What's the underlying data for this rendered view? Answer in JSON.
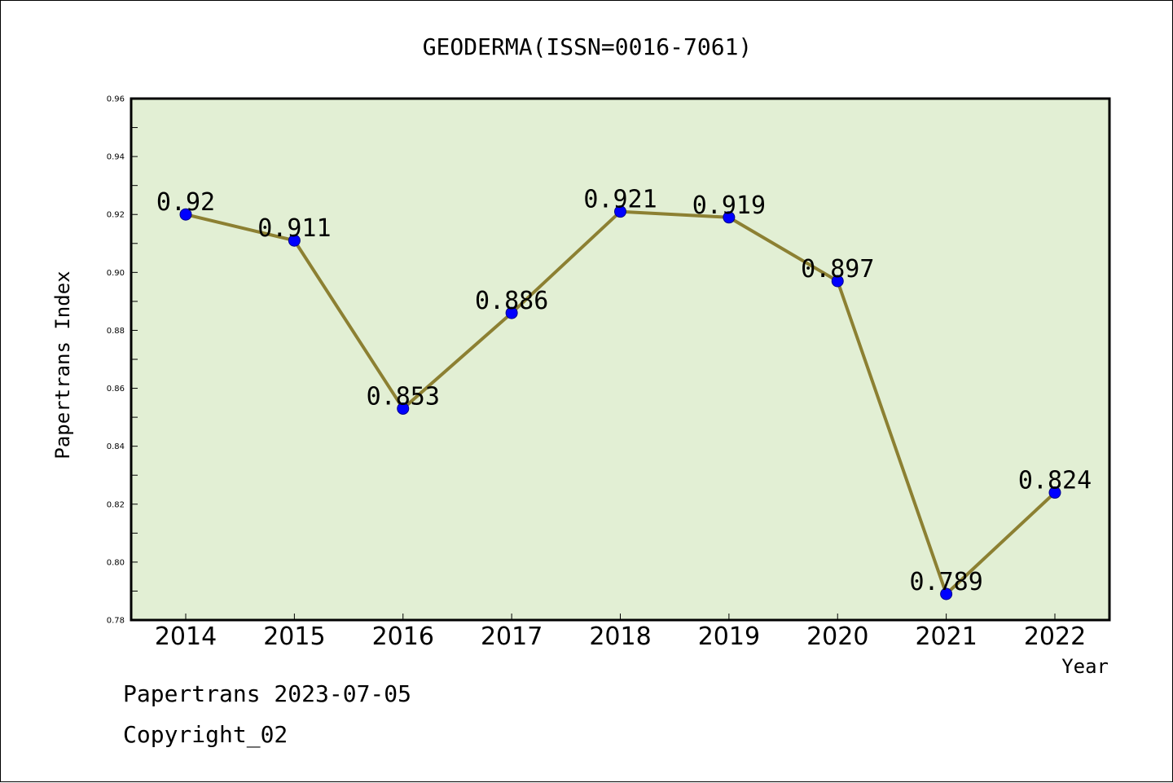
{
  "colors": {
    "plot_background": "#e2efd4",
    "line": "#8c8032",
    "marker_fill": "#0000ff",
    "marker_edge": "#00008b",
    "axis": "#000000"
  },
  "chart_data": {
    "type": "line",
    "title": "GEODERMA(ISSN=0016-7061)",
    "xlabel": "Year",
    "ylabel": "Papertrans Index",
    "categories": [
      "2014",
      "2015",
      "2016",
      "2017",
      "2018",
      "2019",
      "2020",
      "2021",
      "2022"
    ],
    "values": [
      0.92,
      0.911,
      0.853,
      0.886,
      0.921,
      0.919,
      0.897,
      0.789,
      0.824
    ],
    "data_labels": [
      "0.92",
      "0.911",
      "0.853",
      "0.886",
      "0.921",
      "0.919",
      "0.897",
      "0.789",
      "0.824"
    ],
    "ylim": [
      0.78,
      0.96
    ],
    "yticks": [
      0.78,
      0.8,
      0.82,
      0.84,
      0.86,
      0.88,
      0.9,
      0.92,
      0.94,
      0.96
    ],
    "ytick_labels": [
      "0.78",
      "0.80",
      "0.82",
      "0.84",
      "0.86",
      "0.88",
      "0.90",
      "0.92",
      "0.94",
      "0.96"
    ],
    "grid": false,
    "legend": "none"
  },
  "footer": {
    "line1": "Papertrans 2023-07-05",
    "line2": "Copyright_02"
  }
}
